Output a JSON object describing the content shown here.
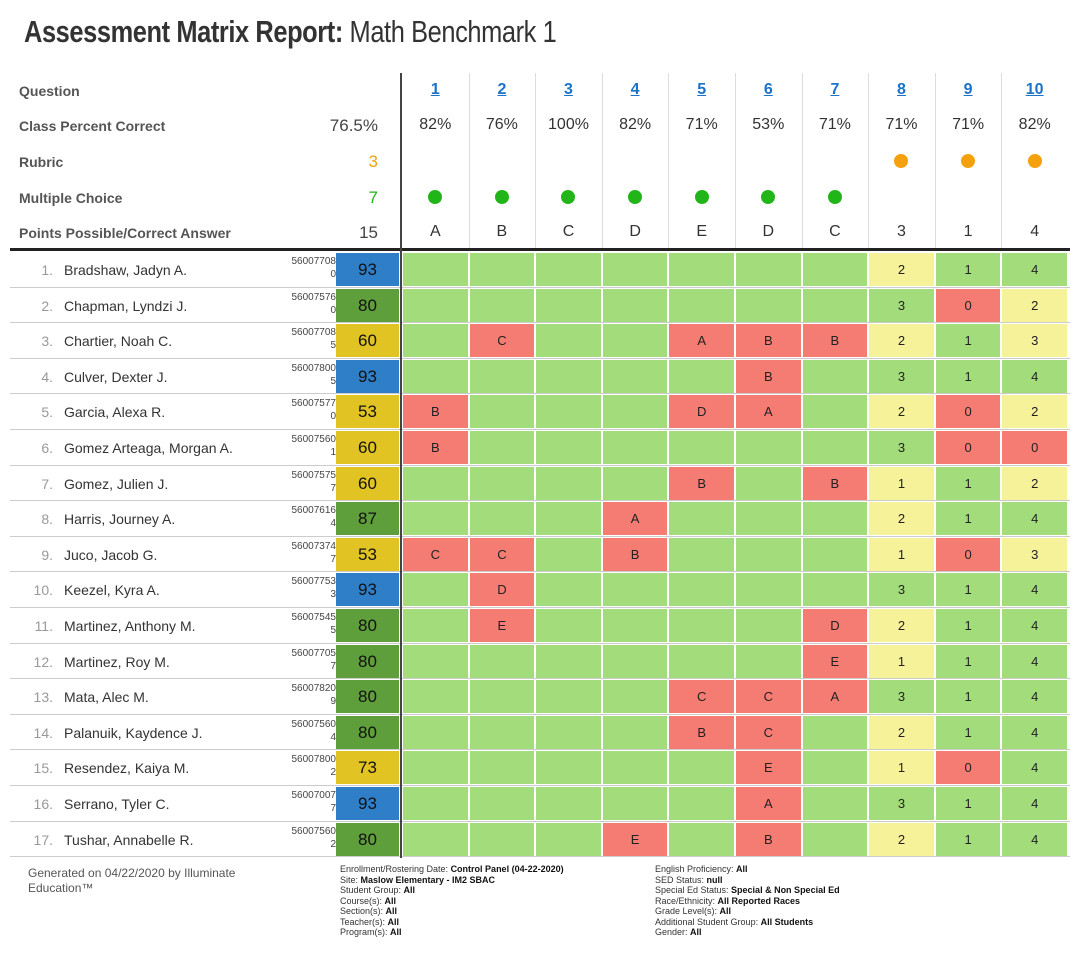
{
  "title": {
    "main": "Assessment Matrix Report:",
    "sub": " Math Benchmark 1"
  },
  "header": {
    "question_label": "Question",
    "percent_label": "Class Percent Correct",
    "percent_total": "76.5%",
    "rubric_label": "Rubric",
    "rubric_count": "3",
    "mc_label": "Multiple Choice",
    "mc_count": "7",
    "points_label": "Points Possible/Correct Answer",
    "points_total": "15",
    "questions": [
      {
        "q": "1",
        "pct": "82%",
        "type": "mc",
        "ans": "A"
      },
      {
        "q": "2",
        "pct": "76%",
        "type": "mc",
        "ans": "B"
      },
      {
        "q": "3",
        "pct": "100%",
        "type": "mc",
        "ans": "C"
      },
      {
        "q": "4",
        "pct": "82%",
        "type": "mc",
        "ans": "D"
      },
      {
        "q": "5",
        "pct": "71%",
        "type": "mc",
        "ans": "E"
      },
      {
        "q": "6",
        "pct": "53%",
        "type": "mc",
        "ans": "D"
      },
      {
        "q": "7",
        "pct": "71%",
        "type": "mc",
        "ans": "C"
      },
      {
        "q": "8",
        "pct": "71%",
        "type": "rubric",
        "ans": "3"
      },
      {
        "q": "9",
        "pct": "71%",
        "type": "rubric",
        "ans": "1"
      },
      {
        "q": "10",
        "pct": "82%",
        "type": "rubric",
        "ans": "4"
      }
    ]
  },
  "colors": {
    "correct": "#a3dd7b",
    "wrong": "#f47c73",
    "partial": "#f6f29a",
    "blue": "#2f7fc8",
    "dark_green": "#5e9e3b",
    "yellow": "#e1c424",
    "mc_dot": "#22b51a",
    "rubric_dot": "#f5a10e",
    "link": "#1a73c8"
  },
  "students": [
    {
      "n": "1.",
      "name": "Bradshaw, Jadyn A.",
      "id1": "56007708",
      "id2": "0",
      "score": "93",
      "r": [
        "",
        "",
        "",
        "",
        "",
        "",
        "",
        "2",
        "1",
        "4"
      ]
    },
    {
      "n": "2.",
      "name": "Chapman, Lyndzi J.",
      "id1": "56007576",
      "id2": "0",
      "score": "80",
      "r": [
        "",
        "",
        "",
        "",
        "",
        "",
        "",
        "3",
        "0",
        "2"
      ]
    },
    {
      "n": "3.",
      "name": "Chartier, Noah C.",
      "id1": "56007708",
      "id2": "5",
      "score": "60",
      "r": [
        "",
        "C",
        "",
        "",
        "A",
        "B",
        "B",
        "2",
        "1",
        "3"
      ]
    },
    {
      "n": "4.",
      "name": "Culver, Dexter J.",
      "id1": "56007800",
      "id2": "5",
      "score": "93",
      "r": [
        "",
        "",
        "",
        "",
        "",
        "B",
        "",
        "3",
        "1",
        "4"
      ]
    },
    {
      "n": "5.",
      "name": "Garcia, Alexa R.",
      "id1": "56007577",
      "id2": "0",
      "score": "53",
      "r": [
        "B",
        "",
        "",
        "",
        "D",
        "A",
        "",
        "2",
        "0",
        "2"
      ]
    },
    {
      "n": "6.",
      "name": "Gomez Arteaga, Morgan A.",
      "id1": "56007560",
      "id2": "1",
      "score": "60",
      "r": [
        "B",
        "",
        "",
        "",
        "",
        "",
        "",
        "3",
        "0",
        "0"
      ]
    },
    {
      "n": "7.",
      "name": "Gomez, Julien J.",
      "id1": "56007575",
      "id2": "7",
      "score": "60",
      "r": [
        "",
        "",
        "",
        "",
        "B",
        "",
        "B",
        "1",
        "1",
        "2"
      ]
    },
    {
      "n": "8.",
      "name": "Harris, Journey A.",
      "id1": "56007616",
      "id2": "4",
      "score": "87",
      "r": [
        "",
        "",
        "",
        "A",
        "",
        "",
        "",
        "2",
        "1",
        "4"
      ]
    },
    {
      "n": "9.",
      "name": "Juco, Jacob G.",
      "id1": "56007374",
      "id2": "7",
      "score": "53",
      "r": [
        "C",
        "C",
        "",
        "B",
        "",
        "",
        "",
        "1",
        "0",
        "3"
      ]
    },
    {
      "n": "10.",
      "name": "Keezel, Kyra A.",
      "id1": "56007753",
      "id2": "3",
      "score": "93",
      "r": [
        "",
        "D",
        "",
        "",
        "",
        "",
        "",
        "3",
        "1",
        "4"
      ]
    },
    {
      "n": "11.",
      "name": "Martinez, Anthony M.",
      "id1": "56007545",
      "id2": "5",
      "score": "80",
      "r": [
        "",
        "E",
        "",
        "",
        "",
        "",
        "D",
        "2",
        "1",
        "4"
      ]
    },
    {
      "n": "12.",
      "name": "Martinez, Roy M.",
      "id1": "56007705",
      "id2": "7",
      "score": "80",
      "r": [
        "",
        "",
        "",
        "",
        "",
        "",
        "E",
        "1",
        "1",
        "4"
      ]
    },
    {
      "n": "13.",
      "name": "Mata, Alec M.",
      "id1": "56007820",
      "id2": "9",
      "score": "80",
      "r": [
        "",
        "",
        "",
        "",
        "C",
        "C",
        "A",
        "3",
        "1",
        "4"
      ]
    },
    {
      "n": "14.",
      "name": "Palanuik, Kaydence J.",
      "id1": "56007560",
      "id2": "4",
      "score": "80",
      "r": [
        "",
        "",
        "",
        "",
        "B",
        "C",
        "",
        "2",
        "1",
        "4"
      ]
    },
    {
      "n": "15.",
      "name": "Resendez, Kaiya M.",
      "id1": "56007800",
      "id2": "2",
      "score": "73",
      "r": [
        "",
        "",
        "",
        "",
        "",
        "E",
        "",
        "1",
        "0",
        "4"
      ]
    },
    {
      "n": "16.",
      "name": "Serrano, Tyler C.",
      "id1": "56007007",
      "id2": "7",
      "score": "93",
      "r": [
        "",
        "",
        "",
        "",
        "",
        "A",
        "",
        "3",
        "1",
        "4"
      ]
    },
    {
      "n": "17.",
      "name": "Tushar, Annabelle R.",
      "id1": "56007560",
      "id2": "2",
      "score": "80",
      "r": [
        "",
        "",
        "",
        "E",
        "",
        "B",
        "",
        "2",
        "1",
        "4"
      ]
    }
  ],
  "footer": {
    "generated": "Generated on 04/22/2020 by Illuminate Education™",
    "left": [
      [
        "Enrollment/Rostering Date: ",
        "Control Panel (04-22-2020)"
      ],
      [
        "Site: ",
        "Maslow Elementary - IM2 SBAC"
      ],
      [
        "Student Group: ",
        "All"
      ],
      [
        "Course(s): ",
        "All"
      ],
      [
        "Section(s): ",
        "All"
      ],
      [
        "Teacher(s): ",
        "All"
      ],
      [
        "Program(s): ",
        "All"
      ]
    ],
    "right": [
      [
        "English Proficiency: ",
        "All"
      ],
      [
        "SED Status: ",
        "null"
      ],
      [
        "Special Ed Status: ",
        "Special & Non Special Ed"
      ],
      [
        "Race/Ethnicity: ",
        "All Reported Races"
      ],
      [
        "Grade Level(s): ",
        "All"
      ],
      [
        "Additional Student Group: ",
        "All Students"
      ],
      [
        "Gender: ",
        "All"
      ]
    ]
  }
}
